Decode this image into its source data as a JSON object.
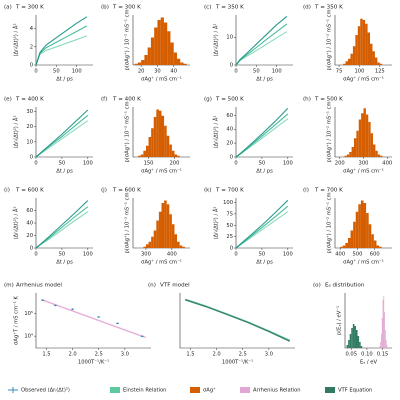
{
  "chart_data": [
    {
      "type": "line",
      "label": "(a)",
      "title": "T = 300 K",
      "x_label": "Δt / ps",
      "y_label": "⟨Δrᵢ(Δt)²⟩ / Å²",
      "xlim": [
        0,
        140
      ],
      "xticks": [
        0,
        50,
        100
      ],
      "ylim": [
        0,
        5.5
      ],
      "yticks": [
        0,
        2,
        4
      ],
      "x": [
        0,
        10,
        25,
        50,
        75,
        100,
        125
      ],
      "series": [
        {
          "color": "#7ed6b5",
          "values": [
            0,
            1.2,
            1.6,
            2.0,
            2.4,
            2.8,
            3.2
          ]
        },
        {
          "color": "#33b58f",
          "values": [
            0,
            1.3,
            1.9,
            2.5,
            3.1,
            3.7,
            4.3
          ]
        },
        {
          "color": "#0f8f80",
          "values": [
            0,
            1.4,
            2.2,
            3.0,
            3.8,
            4.6,
            5.3
          ]
        }
      ]
    },
    {
      "type": "histogram",
      "label": "(b)",
      "title": "T = 300 K",
      "x_label": "σAg⁺ / mS cm⁻¹",
      "y_label": "p(σAg⁺) / 10⁻² mS⁻¹ cm",
      "xlim": [
        15,
        50
      ],
      "xticks": [
        20,
        30,
        40
      ],
      "ylim": [
        0,
        40
      ],
      "series": [
        {
          "color": "#d55e00",
          "bins": [
            16,
            18,
            20,
            22,
            24,
            26,
            28,
            30,
            32,
            34,
            36,
            38,
            40,
            42,
            44,
            46,
            48
          ],
          "counts": [
            1,
            2,
            4,
            8,
            14,
            22,
            30,
            36,
            38,
            34,
            27,
            18,
            10,
            5,
            2,
            1
          ]
        }
      ]
    },
    {
      "type": "line",
      "label": "(c)",
      "title": "T = 350 K",
      "x_label": "Δt / ps",
      "y_label": "⟨Δrᵢ(Δt)²⟩ / Å²",
      "xlim": [
        0,
        140
      ],
      "xticks": [
        0,
        50,
        100
      ],
      "ylim": [
        0,
        18
      ],
      "yticks": [
        0,
        10
      ],
      "x": [
        0,
        10,
        25,
        50,
        75,
        100,
        125
      ],
      "series": [
        {
          "color": "#7ed6b5",
          "values": [
            0,
            1.6,
            3,
            5.2,
            7.5,
            9.8,
            12
          ]
        },
        {
          "color": "#33b58f",
          "values": [
            0,
            1.8,
            3.5,
            6.3,
            9.2,
            12,
            14.8
          ]
        },
        {
          "color": "#0f8f80",
          "values": [
            0,
            2,
            4,
            7.5,
            11,
            14.5,
            17.5
          ]
        }
      ]
    },
    {
      "type": "histogram",
      "label": "(d)",
      "title": "T = 350 K",
      "x_label": "σAg⁺ / mS cm⁻¹",
      "y_label": "p(σAg⁺) / 10⁻² mS⁻¹ cm",
      "xlim": [
        70,
        140
      ],
      "xticks": [
        75,
        100,
        125
      ],
      "ylim": [
        0,
        40
      ],
      "series": [
        {
          "color": "#d55e00",
          "bins": [
            80,
            83,
            86,
            89,
            92,
            95,
            98,
            101,
            104,
            107,
            110,
            113,
            116,
            119,
            122,
            125,
            128
          ],
          "counts": [
            1,
            3,
            5,
            9,
            15,
            24,
            31,
            37,
            36,
            33,
            26,
            17,
            11,
            6,
            2,
            1
          ]
        }
      ]
    },
    {
      "type": "line",
      "label": "(e)",
      "title": "T = 400 K",
      "x_label": "Δt / ps",
      "y_label": "⟨Δrᵢ(Δt)²⟩ / Å²",
      "xlim": [
        0,
        110
      ],
      "xticks": [
        0,
        50,
        100
      ],
      "ylim": [
        0,
        33
      ],
      "yticks": [
        0,
        10,
        20,
        30
      ],
      "x": [
        0,
        10,
        25,
        50,
        75,
        100
      ],
      "series": [
        {
          "color": "#7ed6b5",
          "values": [
            0,
            2.5,
            6,
            12,
            18,
            24
          ]
        },
        {
          "color": "#33b58f",
          "values": [
            0,
            2.8,
            7,
            13.5,
            20.5,
            27.5
          ]
        },
        {
          "color": "#0f8f80",
          "values": [
            0,
            3,
            7.5,
            15,
            23,
            31
          ]
        }
      ]
    },
    {
      "type": "histogram",
      "label": "(f)",
      "title": "T = 400 K",
      "x_label": "σAg⁺ / mS cm⁻¹",
      "y_label": "p(σAg⁺) / 10⁻² mS⁻¹ cm",
      "xlim": [
        120,
        230
      ],
      "xticks": [
        150,
        200
      ],
      "ylim": [
        0,
        40
      ],
      "series": [
        {
          "color": "#d55e00",
          "bins": [
            130,
            135,
            140,
            145,
            150,
            155,
            160,
            165,
            170,
            175,
            180,
            185,
            190,
            195,
            200,
            205,
            210
          ],
          "counts": [
            1,
            2,
            5,
            9,
            16,
            23,
            32,
            38,
            37,
            33,
            25,
            17,
            10,
            5,
            2,
            1
          ]
        }
      ]
    },
    {
      "type": "line",
      "label": "(g)",
      "title": "T = 500 K",
      "x_label": "Δt / ps",
      "y_label": "⟨Δrᵢ(Δt)²⟩ / Å²",
      "xlim": [
        0,
        110
      ],
      "xticks": [
        0,
        50,
        100
      ],
      "ylim": [
        0,
        72
      ],
      "yticks": [
        0,
        20,
        40,
        60
      ],
      "x": [
        0,
        10,
        25,
        50,
        75,
        100
      ],
      "series": [
        {
          "color": "#7ed6b5",
          "values": [
            0,
            5,
            13,
            27,
            41,
            55
          ]
        },
        {
          "color": "#33b58f",
          "values": [
            0,
            5.5,
            14.5,
            30,
            46,
            62
          ]
        },
        {
          "color": "#0f8f80",
          "values": [
            0,
            6,
            16,
            33,
            51,
            70
          ]
        }
      ]
    },
    {
      "type": "histogram",
      "label": "(h)",
      "title": "T = 500 K",
      "x_label": "σAg⁺ / mS cm⁻¹",
      "y_label": "p(σAg⁺) / 10⁻² mS⁻¹ cm",
      "xlim": [
        180,
        420
      ],
      "xticks": [
        200,
        300,
        400
      ],
      "ylim": [
        0,
        40
      ],
      "series": [
        {
          "color": "#d55e00",
          "bins": [
            220,
            230,
            240,
            250,
            260,
            270,
            280,
            290,
            300,
            310,
            320,
            330,
            340,
            350,
            360,
            370,
            380
          ],
          "counts": [
            1,
            2,
            4,
            8,
            15,
            21,
            30,
            35,
            39,
            34,
            28,
            19,
            10,
            5,
            2,
            1
          ]
        }
      ]
    },
    {
      "type": "line",
      "label": "(i)",
      "title": "T = 600 K",
      "x_label": "Δt / ps",
      "y_label": "⟨Δrᵢ(Δt)²⟩ / Å²",
      "xlim": [
        0,
        110
      ],
      "xticks": [
        0,
        50,
        100
      ],
      "ylim": [
        0,
        80
      ],
      "yticks": [
        0,
        20,
        40,
        60
      ],
      "x": [
        0,
        10,
        25,
        50,
        75,
        100
      ],
      "series": [
        {
          "color": "#7ed6b5",
          "values": [
            0,
            6,
            14,
            29,
            44,
            58
          ]
        },
        {
          "color": "#33b58f",
          "values": [
            0,
            6.5,
            16,
            33,
            50,
            66
          ]
        },
        {
          "color": "#0f8f80",
          "values": [
            0,
            7,
            18,
            37,
            56,
            76
          ]
        }
      ]
    },
    {
      "type": "histogram",
      "label": "(j)",
      "title": "T = 600 K",
      "x_label": "σAg⁺ / mS cm⁻¹",
      "y_label": "p(σAg⁺) / 10⁻² mS⁻¹ cm",
      "xlim": [
        250,
        470
      ],
      "xticks": [
        300,
        400
      ],
      "ylim": [
        0,
        40
      ],
      "series": [
        {
          "color": "#d55e00",
          "bins": [
            290,
            300,
            310,
            320,
            330,
            340,
            350,
            360,
            370,
            380,
            390,
            400,
            410,
            420,
            430,
            440,
            450
          ],
          "counts": [
            1,
            3,
            5,
            9,
            14,
            22,
            29,
            36,
            38,
            35,
            27,
            19,
            11,
            5,
            2,
            1
          ]
        }
      ]
    },
    {
      "type": "line",
      "label": "(k)",
      "title": "T = 700 K",
      "x_label": "Δt / ps",
      "y_label": "⟨Δrᵢ(Δt)²⟩ / Å²",
      "xlim": [
        0,
        110
      ],
      "xticks": [
        0,
        50,
        100
      ],
      "ylim": [
        0,
        110
      ],
      "yticks": [
        0,
        25,
        50,
        75,
        100
      ],
      "x": [
        0,
        10,
        25,
        50,
        75,
        100
      ],
      "series": [
        {
          "color": "#7ed6b5",
          "values": [
            0,
            8,
            20,
            40,
            60,
            80
          ]
        },
        {
          "color": "#33b58f",
          "values": [
            0,
            9,
            22,
            45,
            68,
            92
          ]
        },
        {
          "color": "#0f8f80",
          "values": [
            0,
            10,
            25,
            50,
            77,
            105
          ]
        }
      ]
    },
    {
      "type": "histogram",
      "label": "(l)",
      "title": "T = 700 K",
      "x_label": "σAg⁺ / mS cm⁻¹",
      "y_label": "p(σAg⁺) / 10⁻² mS⁻¹ cm",
      "xlim": [
        370,
        700
      ],
      "xticks": [
        400,
        500,
        600
      ],
      "ylim": [
        0,
        40
      ],
      "series": [
        {
          "color": "#d55e00",
          "bins": [
            400,
            415,
            430,
            445,
            460,
            475,
            490,
            505,
            520,
            535,
            550,
            565,
            580,
            595,
            610,
            625,
            640
          ],
          "counts": [
            1,
            2,
            4,
            8,
            14,
            21,
            29,
            35,
            38,
            36,
            28,
            19,
            11,
            6,
            2,
            1
          ]
        }
      ]
    },
    {
      "type": "line",
      "label": "(m)",
      "title": "Arrhenius model",
      "x_label": "1000T⁻¹/K⁻¹",
      "y_label": "σAg⁺T / mS cm⁻¹ K",
      "xlim": [
        1.3,
        3.5
      ],
      "xticks": [
        1.5,
        {
          "value": 2,
          "label": "2.0"
        },
        2.5,
        {
          "value": 3,
          "label": "3.0"
        }
      ],
      "ylim": [
        3000,
        800000
      ],
      "log_y": true,
      "yticks": [
        {
          "value": 10000,
          "label": "10⁴"
        },
        {
          "value": 100000,
          "label": "10⁵"
        }
      ],
      "series": [
        {
          "color": "#e3a6d2",
          "x": [
            1.4,
            3.4
          ],
          "values": [
            410000,
            8700
          ]
        },
        {
          "color": "#2a7fb8",
          "x": [
            1.43,
            1.67,
            2.0,
            2.5,
            2.86,
            3.33
          ],
          "values": [
            385000,
            228000,
            155000,
            70000,
            36750,
            9900
          ],
          "errors": [
            30000,
            18000,
            12000,
            6000,
            3000,
            900
          ]
        }
      ]
    },
    {
      "type": "line",
      "label": "(n)",
      "title": "VTF model",
      "x_label": "1000T⁻¹/K⁻¹",
      "xlim": [
        1.3,
        3.5
      ],
      "xticks": [
        1.5,
        {
          "value": 2,
          "label": "2.0"
        },
        2.5,
        {
          "value": 3,
          "label": "3.0"
        }
      ],
      "ylim": [
        3000,
        800000
      ],
      "log_y": true,
      "x": [
        1.4,
        1.8,
        2.2,
        2.6,
        3.0,
        3.4
      ],
      "series": [
        {
          "color": "#5cc8a0",
          "values": [
            420000,
            210000,
            95000,
            42000,
            17000,
            6500
          ]
        },
        {
          "color": "#2f7a60",
          "values": [
            400000,
            200000,
            90000,
            40000,
            16000,
            6000
          ]
        }
      ]
    },
    {
      "type": "histogram",
      "label": "(o)",
      "title": "Eₐ distribution",
      "x_label": "Eₐ / eV",
      "y_label": "p(Eₐ) / eV⁻¹",
      "xlim": [
        0.03,
        0.18
      ],
      "xticks": [
        0.05,
        {
          "value": 0.1,
          "label": "0.10"
        },
        0.15
      ],
      "ylim": [
        0,
        55
      ],
      "series": [
        {
          "color": "#2f7a60",
          "bins": [
            0.035,
            0.04,
            0.045,
            0.05,
            0.055,
            0.06,
            0.065,
            0.07,
            0.075,
            0.08,
            0.085
          ],
          "counts": [
            3,
            8,
            14,
            20,
            24,
            22,
            18,
            12,
            6,
            2
          ]
        },
        {
          "color": "#e3a6d2",
          "bins": [
            0.14,
            0.1425,
            0.145,
            0.1475,
            0.15,
            0.1525,
            0.155,
            0.1575,
            0.16,
            0.1625,
            0.165
          ],
          "counts": [
            2,
            6,
            14,
            30,
            48,
            52,
            36,
            18,
            8,
            3
          ]
        }
      ]
    }
  ],
  "legend": [
    {
      "name": "Observed ⟨Δrᵢ(Δt)²⟩",
      "color": "#2a7fb8"
    },
    {
      "name": "Einstein Relation",
      "color": "#5cc8a0"
    },
    {
      "name": "σAg⁺",
      "color": "#d55e00"
    },
    {
      "name": "Arrhenius Relation",
      "color": "#e3a6d2"
    },
    {
      "name": "VTF Equation",
      "color": "#2f7a60"
    }
  ]
}
